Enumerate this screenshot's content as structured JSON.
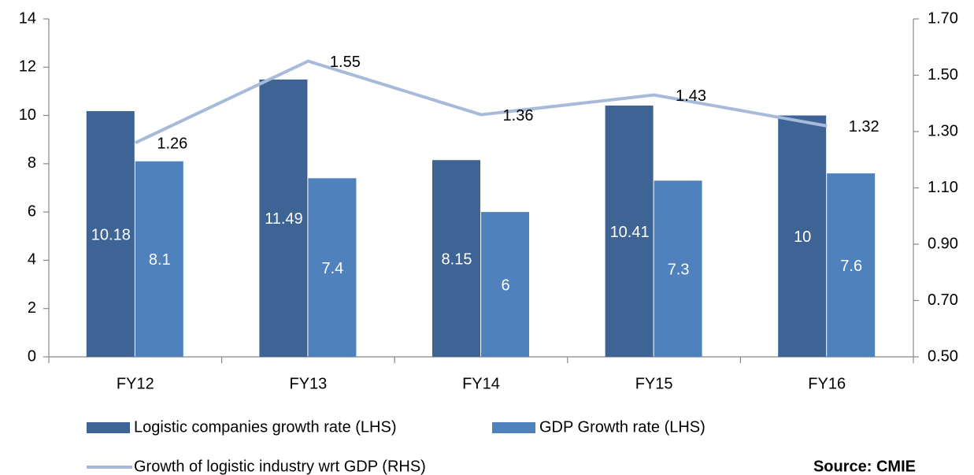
{
  "chart_data": {
    "type": "bar",
    "categories": [
      "FY12",
      "FY13",
      "FY14",
      "FY15",
      "FY16"
    ],
    "series": [
      {
        "name": "Logistic companies growth rate (LHS)",
        "color": "#3e6496",
        "type": "bar",
        "values": [
          10.18,
          11.49,
          8.15,
          10.41,
          10
        ]
      },
      {
        "name": "GDP Growth rate (LHS)",
        "color": "#4f81bd",
        "type": "bar",
        "values": [
          8.1,
          7.4,
          6,
          7.3,
          7.6
        ]
      },
      {
        "name": "Growth of logistic industry wrt GDP (RHS)",
        "color": "#a7bad9",
        "type": "line",
        "axis": "y2",
        "values": [
          1.26,
          1.55,
          1.36,
          1.43,
          1.32
        ]
      }
    ],
    "ylim": [
      0,
      14
    ],
    "yticks": [
      0,
      2,
      4,
      6,
      8,
      10,
      12,
      14
    ],
    "y2lim": [
      0.5,
      1.7
    ],
    "y2ticks": [
      {
        "value": 0.5,
        "label": "0.50"
      },
      {
        "value": 0.7,
        "label": "0.70"
      },
      {
        "value": 0.9,
        "label": "0.90"
      },
      {
        "value": 1.1,
        "label": "1.10"
      },
      {
        "value": 1.3,
        "label": "1.30"
      },
      {
        "value": 1.5,
        "label": "1.50"
      },
      {
        "value": 1.7,
        "label": "1.70"
      }
    ],
    "annotation": "Source: CMIE",
    "grid": false
  }
}
